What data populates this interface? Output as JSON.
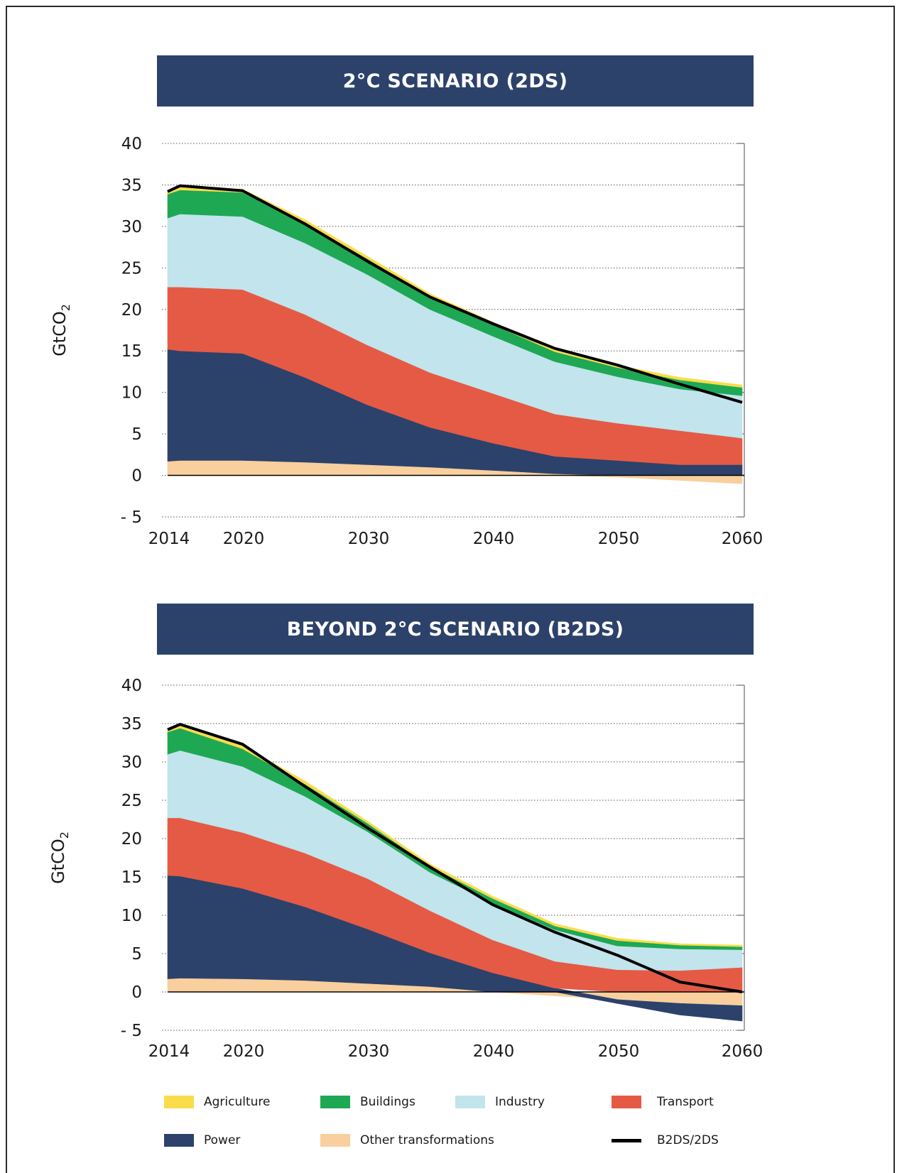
{
  "chart_data": [
    {
      "type": "area",
      "title": "2°C SCENARIO (2DS)",
      "ylabel": "GtCO2",
      "ylim": [
        -5,
        40
      ],
      "yticks": [
        "40",
        "35",
        "30",
        "25",
        "20",
        "15",
        "10",
        "5",
        "0",
        "- 5"
      ],
      "xticks": [
        "2014",
        "2020",
        "2030",
        "2040",
        "2050",
        "2060"
      ],
      "x": [
        2014,
        2015,
        2020,
        2025,
        2030,
        2035,
        2040,
        2045,
        2050,
        2055,
        2060
      ],
      "series": [
        {
          "name": "Other transformations",
          "color": "#f8cf9d",
          "values": [
            1.7,
            1.8,
            1.8,
            1.6,
            1.3,
            1.0,
            0.6,
            0.2,
            -0.2,
            -0.6,
            -1.0
          ]
        },
        {
          "name": "Power",
          "color": "#2c426b",
          "values": [
            13.5,
            13.2,
            12.9,
            10.2,
            7.2,
            4.8,
            3.3,
            2.1,
            1.8,
            1.3,
            1.3
          ]
        },
        {
          "name": "Transport",
          "color": "#e55a45",
          "values": [
            7.5,
            7.7,
            7.7,
            7.6,
            7.2,
            6.6,
            6.0,
            5.1,
            4.5,
            4.1,
            3.2
          ]
        },
        {
          "name": "Industry",
          "color": "#c2e4ec",
          "values": [
            8.3,
            8.8,
            8.8,
            8.6,
            8.5,
            7.6,
            6.9,
            6.3,
            5.6,
            5.0,
            5.1
          ]
        },
        {
          "name": "Buildings",
          "color": "#1ea854",
          "values": [
            2.9,
            2.9,
            2.9,
            2.4,
            1.9,
            1.6,
            1.4,
            1.2,
            1.1,
            1.1,
            1.0
          ]
        },
        {
          "name": "Agriculture",
          "color": "#fadc4b",
          "values": [
            0.4,
            0.4,
            0.4,
            0.4,
            0.3,
            0.3,
            0.3,
            0.3,
            0.3,
            0.3,
            0.3
          ]
        }
      ],
      "line": {
        "name": "B2DS/2DS",
        "values": [
          34.2,
          34.9,
          34.3,
          30.3,
          25.8,
          21.5,
          18.3,
          15.3,
          13.3,
          11.0,
          8.8
        ]
      }
    },
    {
      "type": "area",
      "title": "BEYOND 2°C SCENARIO (B2DS)",
      "ylabel": "GtCO2",
      "ylim": [
        -5,
        40
      ],
      "yticks": [
        "40",
        "35",
        "30",
        "25",
        "20",
        "15",
        "10",
        "5",
        "0",
        "- 5"
      ],
      "xticks": [
        "2014",
        "2020",
        "2030",
        "2040",
        "2050",
        "2060"
      ],
      "x": [
        2014,
        2015,
        2020,
        2025,
        2030,
        2035,
        2040,
        2045,
        2050,
        2055,
        2060
      ],
      "series": [
        {
          "name": "Other transformations",
          "color": "#f8cf9d",
          "values": [
            1.7,
            1.8,
            1.7,
            1.5,
            1.1,
            0.7,
            0.0,
            -0.5,
            -1.0,
            -1.5,
            -1.8
          ]
        },
        {
          "name": "Power",
          "color": "#2c426b",
          "values": [
            13.5,
            13.3,
            11.8,
            9.6,
            7.1,
            4.4,
            2.5,
            0.5,
            -0.5,
            -1.5,
            -2.0
          ]
        },
        {
          "name": "Transport",
          "color": "#e55a45",
          "values": [
            7.5,
            7.6,
            7.3,
            7.0,
            6.6,
            5.5,
            4.3,
            3.5,
            2.9,
            2.8,
            3.2
          ]
        },
        {
          "name": "Industry",
          "color": "#c2e4ec",
          "values": [
            8.3,
            8.8,
            8.6,
            7.4,
            6.1,
            5.0,
            4.8,
            4.1,
            3.1,
            2.8,
            2.3
          ]
        },
        {
          "name": "Buildings",
          "color": "#1ea854",
          "values": [
            2.9,
            2.9,
            2.3,
            1.6,
            1.1,
            0.8,
            0.6,
            0.5,
            0.7,
            0.5,
            0.4
          ]
        },
        {
          "name": "Agriculture",
          "color": "#fadc4b",
          "values": [
            0.4,
            0.4,
            0.4,
            0.4,
            0.3,
            0.3,
            0.3,
            0.3,
            0.3,
            0.2,
            0.2
          ]
        }
      ],
      "line": {
        "name": "B2DS/2DS",
        "values": [
          34.2,
          34.9,
          32.3,
          26.8,
          21.4,
          16.3,
          11.4,
          7.8,
          4.8,
          1.3,
          0.0
        ]
      }
    }
  ],
  "legend": [
    {
      "label": "Agriculture",
      "color": "#fadc4b",
      "kind": "swatch"
    },
    {
      "label": "Buildings",
      "color": "#1ea854",
      "kind": "swatch"
    },
    {
      "label": "Industry",
      "color": "#c2e4ec",
      "kind": "swatch"
    },
    {
      "label": "Transport",
      "color": "#e55a45",
      "kind": "swatch"
    },
    {
      "label": "Power",
      "color": "#2c426b",
      "kind": "swatch"
    },
    {
      "label": "Other transformations",
      "color": "#f8cf9d",
      "kind": "swatch"
    },
    {
      "label": "B2DS/2DS",
      "color": "#000000",
      "kind": "line"
    }
  ]
}
